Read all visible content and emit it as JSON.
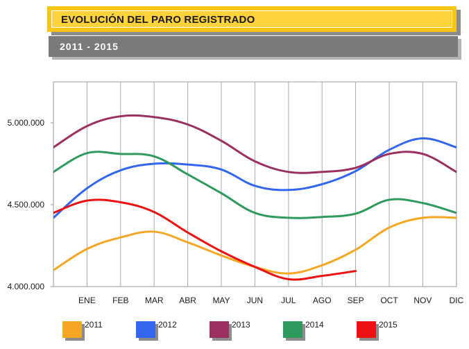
{
  "header": {
    "title": "EVOLUCIÓN DEL PARO REGISTRADO",
    "subtitle": "2011 - 2015"
  },
  "chart_data": {
    "type": "line",
    "categories": [
      "",
      "ENE",
      "FEB",
      "MAR",
      "ABR",
      "MAY",
      "JUN",
      "JUL",
      "AGO",
      "SEP",
      "OCT",
      "NOV",
      "DIC"
    ],
    "y_tick_values": [
      4000000,
      4500000,
      5000000
    ],
    "y_tick_labels": [
      "4.000.000",
      "4.500.000",
      "5.000.000"
    ],
    "ylim": [
      4000000,
      5250000
    ],
    "grid": "vertical",
    "legend_position": "bottom",
    "series": [
      {
        "name": "2011",
        "color": "#f5a623",
        "values": [
          4100000,
          4230000,
          4300000,
          4335000,
          4270000,
          4190000,
          4120000,
          4080000,
          4130000,
          4225000,
          4360000,
          4420000,
          4420000
        ]
      },
      {
        "name": "2012",
        "color": "#3366ee",
        "values": [
          4420000,
          4600000,
          4710000,
          4750000,
          4745000,
          4715000,
          4615000,
          4590000,
          4625000,
          4705000,
          4835000,
          4905000,
          4850000
        ]
      },
      {
        "name": "2013",
        "color": "#9b3060",
        "values": [
          4850000,
          4980000,
          5040000,
          5035000,
          4990000,
          4890000,
          4765000,
          4700000,
          4700000,
          4725000,
          4810000,
          4810000,
          4700000
        ]
      },
      {
        "name": "2014",
        "color": "#2e9a5e",
        "values": [
          4700000,
          4815000,
          4810000,
          4795000,
          4685000,
          4570000,
          4450000,
          4420000,
          4425000,
          4445000,
          4530000,
          4510000,
          4450000
        ]
      },
      {
        "name": "2015",
        "color": "#ee1111",
        "values": [
          4450000,
          4525000,
          4515000,
          4455000,
          4330000,
          4215000,
          4120000,
          4045000,
          4065000,
          4095000,
          null,
          null,
          null
        ]
      }
    ]
  }
}
